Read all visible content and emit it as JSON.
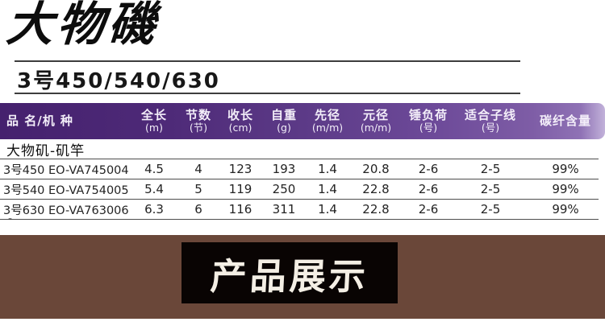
{
  "title": {
    "text": "大物磯"
  },
  "subtitle": {
    "text": "3号450/540/630"
  },
  "table": {
    "headers": [
      {
        "label": "品 名/机  种",
        "unit": ""
      },
      {
        "label": "全长",
        "unit": "(m)"
      },
      {
        "label": "节数",
        "unit": "(节)"
      },
      {
        "label": "收长",
        "unit": "(cm)"
      },
      {
        "label": "自重",
        "unit": "(g)"
      },
      {
        "label": "先径",
        "unit": "(m/m)"
      },
      {
        "label": "元径",
        "unit": "(m/m)"
      },
      {
        "label": "锤负荷",
        "unit": "(号)"
      },
      {
        "label": "适合子线",
        "unit": "(号)"
      },
      {
        "label": "碳纤含量",
        "unit": ""
      }
    ],
    "group_row": "大物矶-矶竿",
    "rows": [
      [
        "3号450 EO-VA745004",
        "4.5",
        "4",
        "123",
        "193",
        "1.4",
        "20.8",
        "2-6",
        "2-5",
        "99%"
      ],
      [
        "3号540 EO-VA754005",
        "5.4",
        "5",
        "119",
        "250",
        "1.4",
        "22.8",
        "2-6",
        "2-5",
        "99%"
      ],
      [
        "3号630 EO-VA763006",
        "6.3",
        "6",
        "116",
        "311",
        "1.4",
        "22.8",
        "2-6",
        "2-5",
        "99%"
      ]
    ]
  },
  "stray_dash": "-",
  "banner": {
    "text": "产品展示"
  },
  "colors": {
    "header_purple_dark": "#45216e",
    "header_purple_light": "#c2b2da",
    "header_text": "#f3eef9",
    "body_text": "#232323",
    "rule_gray": "#3d3d3d",
    "band_brown": "#6a4739",
    "banner_black": "#090403",
    "banner_text": "#f4efe5"
  }
}
